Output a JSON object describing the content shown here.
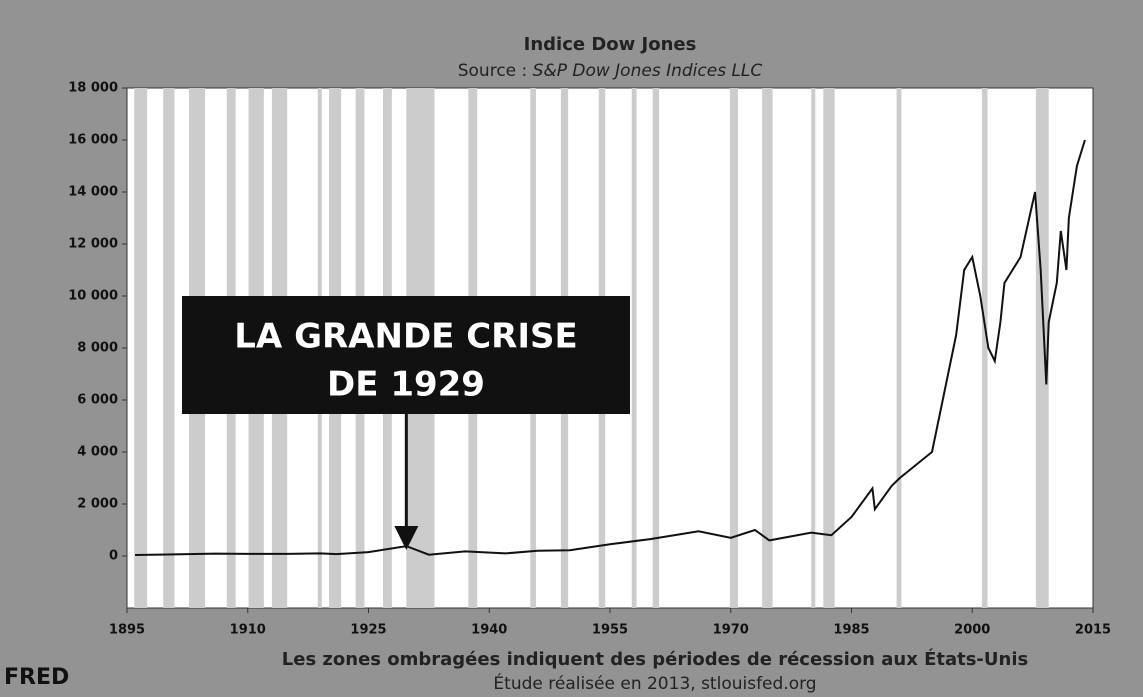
{
  "chart_data": {
    "type": "line",
    "title": "Indice Dow Jones",
    "source_label": "Source :",
    "source": "S&P Dow Jones Indices LLC",
    "footnote": "Les zones ombragées indiquent des périodes de récession aux États-Unis",
    "credit": "Étude réalisée en 2013, stlouisfed.org",
    "logo": "FRED",
    "annotation": {
      "lines": [
        "LA GRANDE CRISE",
        "DE 1929"
      ],
      "x": 1929.7
    },
    "xlim": [
      1895,
      2015
    ],
    "xticks": [
      1895,
      1910,
      1925,
      1940,
      1955,
      1970,
      1985,
      2000,
      2015
    ],
    "ylim": [
      -2000,
      18000
    ],
    "yticks": [
      0,
      {
        "value": 2000,
        "label": "2 000"
      },
      {
        "value": 4000,
        "label": "4 000"
      },
      {
        "value": 6000,
        "label": "6 000"
      },
      {
        "value": 8000,
        "label": "8 000"
      },
      {
        "value": 10000,
        "label": "10 000"
      },
      {
        "value": 12000,
        "label": "12 000"
      },
      {
        "value": 14000,
        "label": "14 000"
      },
      {
        "value": 16000,
        "label": "16 000"
      },
      {
        "value": 18000,
        "label": "18 000"
      }
    ],
    "recession_color": "#cccccc",
    "recessions": [
      [
        1895.9,
        1897.5
      ],
      [
        1899.5,
        1900.9
      ],
      [
        1902.7,
        1904.7
      ],
      [
        1907.4,
        1908.5
      ],
      [
        1910.1,
        1912.0
      ],
      [
        1913.0,
        1914.9
      ],
      [
        1918.7,
        1919.2
      ],
      [
        1920.1,
        1921.6
      ],
      [
        1923.4,
        1924.5
      ],
      [
        1926.8,
        1927.9
      ],
      [
        1929.7,
        1933.2
      ],
      [
        1937.4,
        1938.5
      ],
      [
        1945.1,
        1945.8
      ],
      [
        1948.9,
        1949.8
      ],
      [
        1953.6,
        1954.4
      ],
      [
        1957.7,
        1958.3
      ],
      [
        1960.3,
        1961.1
      ],
      [
        1969.9,
        1970.9
      ],
      [
        1973.9,
        1975.2
      ],
      [
        1980.0,
        1980.5
      ],
      [
        1981.5,
        1982.9
      ],
      [
        1990.6,
        1991.2
      ],
      [
        2001.2,
        2001.9
      ],
      [
        2007.9,
        2009.5
      ]
    ],
    "series": [
      {
        "name": "Dow Jones",
        "color": "#111111",
        "x": [
          1896,
          1900,
          1906,
          1910,
          1915,
          1919,
          1921,
          1925,
          1929.7,
          1932.5,
          1937,
          1942,
          1946,
          1950,
          1955,
          1960,
          1966,
          1970,
          1973,
          1974.8,
          1980,
          1982.5,
          1985,
          1987.6,
          1987.9,
          1990,
          1991,
          1995,
          1996,
          1998,
          1999,
          2000,
          2001,
          2002,
          2002.8,
          2003.5,
          2004,
          2006,
          2007.8,
          2008.5,
          2009.2,
          2009.5,
          2010.5,
          2011,
          2011.7,
          2012,
          2013,
          2014
        ],
        "values": [
          40,
          60,
          90,
          80,
          80,
          100,
          70,
          150,
          380,
          50,
          180,
          100,
          200,
          220,
          450,
          650,
          950,
          700,
          1000,
          600,
          900,
          800,
          1500,
          2600,
          1800,
          2700,
          3000,
          4000,
          5500,
          8500,
          11000,
          11500,
          10000,
          8000,
          7500,
          9000,
          10500,
          11500,
          14000,
          11000,
          6600,
          9000,
          10500,
          12500,
          11000,
          13000,
          15000,
          16000
        ]
      }
    ]
  }
}
